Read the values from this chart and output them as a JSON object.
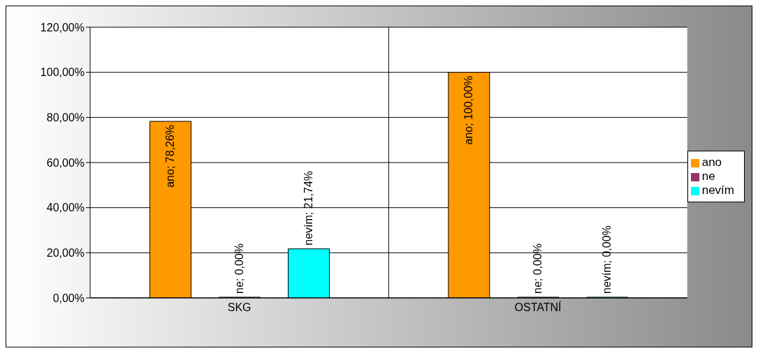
{
  "chart_data": {
    "type": "bar",
    "categories": [
      "SKG",
      "OSTATNÍ"
    ],
    "series": [
      {
        "name": "ano",
        "color": "#ff9900",
        "values": [
          78.26,
          100
        ],
        "value_labels": [
          "ano; 78,26%",
          "ano; 100,00%"
        ]
      },
      {
        "name": "ne",
        "color": "#993366",
        "values": [
          0,
          0
        ],
        "value_labels": [
          "ne; 0,00%",
          "ne; 0,00%"
        ]
      },
      {
        "name": "nevím",
        "color": "#00ffff",
        "values": [
          21.74,
          0
        ],
        "value_labels": [
          "nevím; 21,74%",
          "nevím; 0,00%"
        ]
      }
    ],
    "ylim": [
      0,
      120
    ],
    "yticks": [
      {
        "value": 0,
        "label": "0,00%"
      },
      {
        "value": 20,
        "label": "20,00%"
      },
      {
        "value": 40,
        "label": "40,00%"
      },
      {
        "value": 60,
        "label": "60,00%"
      },
      {
        "value": 80,
        "label": "80,00%"
      },
      {
        "value": 100,
        "label": "100,00%"
      },
      {
        "value": 120,
        "label": "120,00%"
      }
    ],
    "grid": true,
    "legend": "right"
  }
}
